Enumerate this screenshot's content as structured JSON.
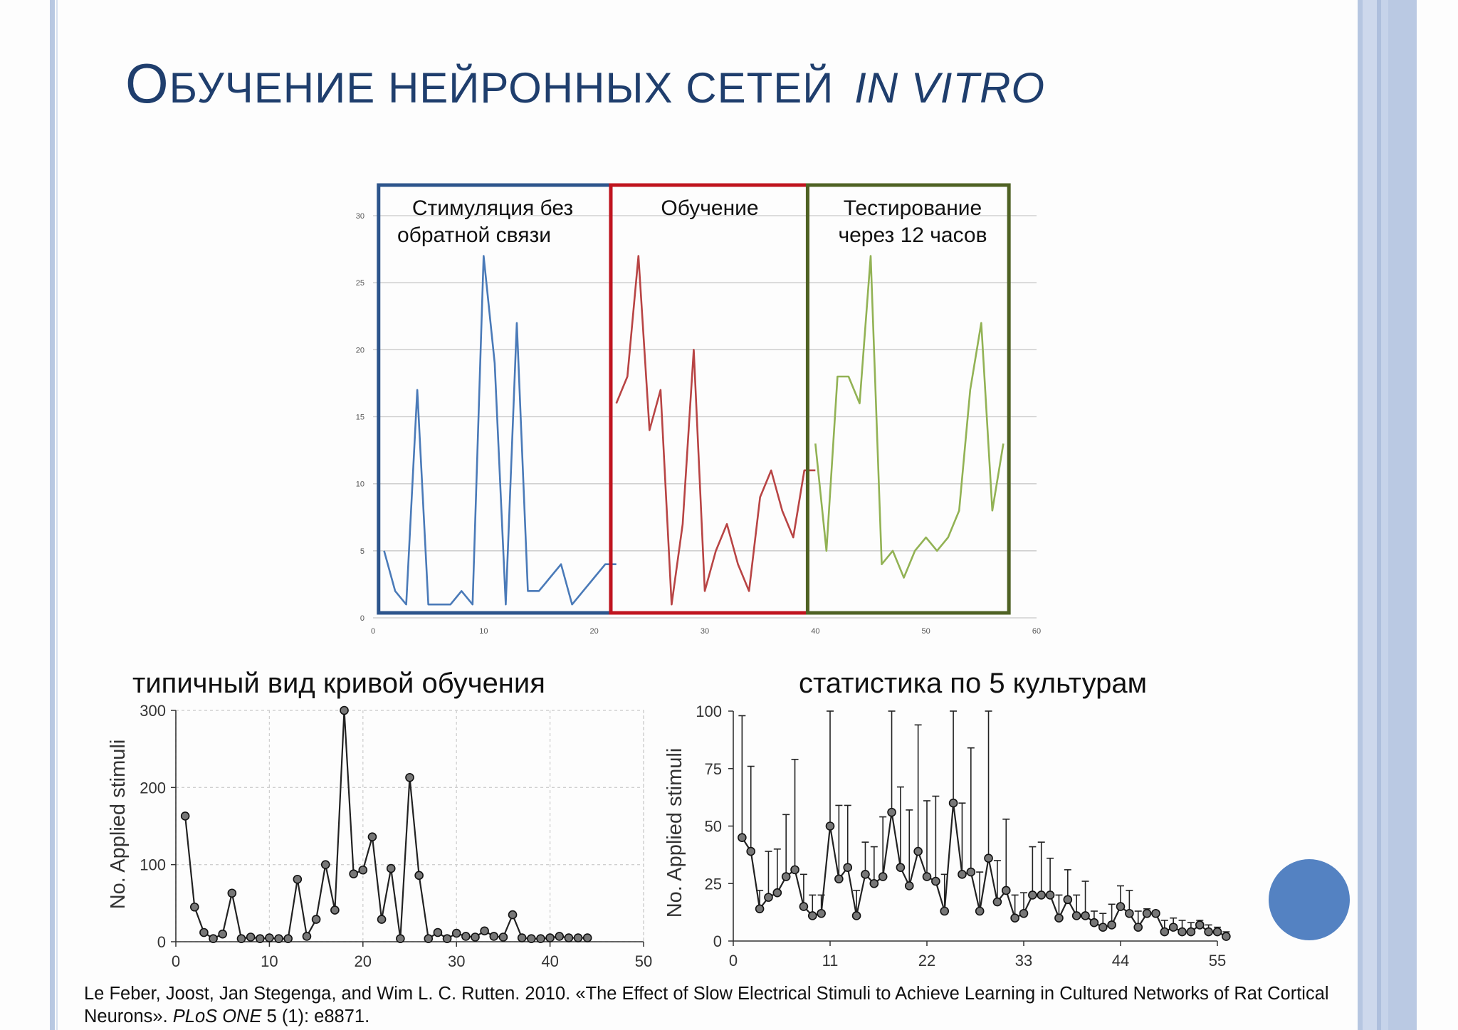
{
  "slide": {
    "title_first": "О",
    "title_rest": "бучение нейронных сетей",
    "title_italic": "in vitro",
    "caption_left": "типичный вид кривой обучения",
    "caption_right": "статистика по 5 культурам",
    "reference_authors": "Le Feber, Joost, Jan Stegenga, and Wim L. C. Rutten. 2010. «The Effect of Slow Electrical Stimuli to Achieve Learning in Cultured Networks of Rat Cortical Neurons».",
    "reference_journal": "PLoS ONE",
    "reference_issue": "5 (1): e8871.",
    "colors": {
      "title": "#1f3e6d",
      "accent_circle": "#5482c2",
      "side_bars": "#b8c8e2"
    }
  },
  "chart_data": [
    {
      "type": "line",
      "xlim": [
        0,
        60
      ],
      "ylim": [
        0,
        30
      ],
      "xticks": [
        "0",
        "10",
        "20",
        "30",
        "40",
        "50",
        "60"
      ],
      "yticks": [
        "0",
        "5",
        "10",
        "15",
        "20",
        "25",
        "30"
      ],
      "grid": true,
      "phases": [
        {
          "label_line1": "Стимуляция без",
          "label_line2": "обратной связи",
          "x_range": [
            0.5,
            21.5
          ],
          "color": "#2d558c"
        },
        {
          "label_line1": "Обучение",
          "label_line2": "",
          "x_range": [
            21.5,
            39.3
          ],
          "color": "#c0141e"
        },
        {
          "label_line1": "Тестирование",
          "label_line2": "через 12 часов",
          "x_range": [
            39.3,
            57.5
          ],
          "color": "#4f6224"
        }
      ],
      "series": [
        {
          "color": "#4a7ab8",
          "x": [
            1,
            2,
            3,
            4,
            5,
            6,
            7,
            8,
            9,
            10,
            11,
            12,
            13,
            14,
            15,
            16,
            17,
            18,
            19,
            20,
            21,
            22
          ],
          "y": [
            5,
            2,
            1,
            17,
            1,
            1,
            1,
            2,
            1,
            27,
            19,
            1,
            22,
            2,
            2,
            3,
            4,
            1,
            2,
            3,
            4,
            4
          ]
        },
        {
          "color": "#b84444",
          "x": [
            22,
            23,
            24,
            25,
            26,
            27,
            28,
            29,
            30,
            31,
            32,
            33,
            34,
            35,
            36,
            37,
            38,
            39,
            40
          ],
          "y": [
            16,
            18,
            27,
            14,
            17,
            1,
            7,
            20,
            2,
            5,
            7,
            4,
            2,
            9,
            11,
            8,
            6,
            11,
            11
          ]
        },
        {
          "color": "#92b254",
          "x": [
            40,
            41,
            42,
            43,
            44,
            45,
            46,
            47,
            48,
            49,
            50,
            51,
            52,
            53,
            54,
            55,
            56,
            57
          ],
          "y": [
            13,
            5,
            18,
            18,
            16,
            27,
            4,
            5,
            3,
            5,
            6,
            5,
            6,
            8,
            17,
            22,
            8,
            13
          ]
        }
      ]
    },
    {
      "type": "line",
      "xlabel": "",
      "ylabel": "No. Applied stimuli",
      "xlim": [
        0,
        50
      ],
      "ylim": [
        0,
        300
      ],
      "xticks": [
        "0",
        "10",
        "20",
        "30",
        "40",
        "50"
      ],
      "yticks": [
        "0",
        "100",
        "200",
        "300"
      ],
      "grid": true,
      "series": [
        {
          "color": "#333333",
          "x": [
            1,
            2,
            3,
            4,
            5,
            6,
            7,
            8,
            9,
            10,
            11,
            12,
            13,
            14,
            15,
            16,
            17,
            18,
            19,
            20,
            21,
            22,
            23,
            24,
            25,
            26,
            27,
            28,
            29,
            30,
            31,
            32,
            33,
            34,
            35,
            36,
            37,
            38,
            39,
            40,
            41,
            42,
            43,
            44
          ],
          "y": [
            163,
            45,
            12,
            4,
            10,
            63,
            4,
            6,
            4,
            5,
            4,
            4,
            81,
            7,
            29,
            100,
            41,
            300,
            88,
            93,
            136,
            29,
            95,
            4,
            213,
            86,
            4,
            12,
            4,
            11,
            7,
            6,
            14,
            7,
            6,
            35,
            5,
            4,
            4,
            5,
            7,
            5,
            5,
            5
          ]
        }
      ]
    },
    {
      "type": "line",
      "xlabel": "",
      "ylabel": "No. Applied stimuli",
      "xlim": [
        0,
        55
      ],
      "ylim": [
        0,
        100
      ],
      "xticks": [
        "0",
        "11",
        "22",
        "33",
        "44",
        "55"
      ],
      "yticks": [
        "0",
        "25",
        "50",
        "75",
        "100"
      ],
      "grid": false,
      "series": [
        {
          "color": "#333333",
          "x": [
            1,
            2,
            3,
            4,
            5,
            6,
            7,
            8,
            9,
            10,
            11,
            12,
            13,
            14,
            15,
            16,
            17,
            18,
            19,
            20,
            21,
            22,
            23,
            24,
            25,
            26,
            27,
            28,
            29,
            30,
            31,
            32,
            33,
            34,
            35,
            36,
            37,
            38,
            39,
            40,
            41,
            42,
            43,
            44,
            45,
            46,
            47,
            48,
            49,
            50,
            51,
            52,
            53,
            54,
            55,
            56
          ],
          "y": [
            45,
            39,
            14,
            19,
            21,
            28,
            31,
            15,
            11,
            12,
            50,
            27,
            32,
            11,
            29,
            25,
            28,
            56,
            32,
            24,
            39,
            28,
            26,
            13,
            60,
            29,
            30,
            13,
            36,
            17,
            22,
            10,
            12,
            20,
            20,
            20,
            10,
            18,
            11,
            11,
            8,
            6,
            7,
            15,
            12,
            6,
            12,
            12,
            4,
            6,
            4,
            4,
            7,
            4,
            4,
            2
          ],
          "err": [
            98,
            76,
            22,
            39,
            40,
            55,
            79,
            29,
            20,
            20,
            100,
            59,
            59,
            22,
            43,
            41,
            54,
            100,
            67,
            57,
            94,
            61,
            63,
            29,
            100,
            60,
            84,
            30,
            100,
            35,
            53,
            20,
            21,
            41,
            43,
            36,
            20,
            31,
            20,
            26,
            13,
            12,
            16,
            24,
            22,
            13,
            14,
            13,
            9,
            10,
            9,
            8,
            9,
            7,
            6,
            4
          ]
        }
      ]
    }
  ]
}
